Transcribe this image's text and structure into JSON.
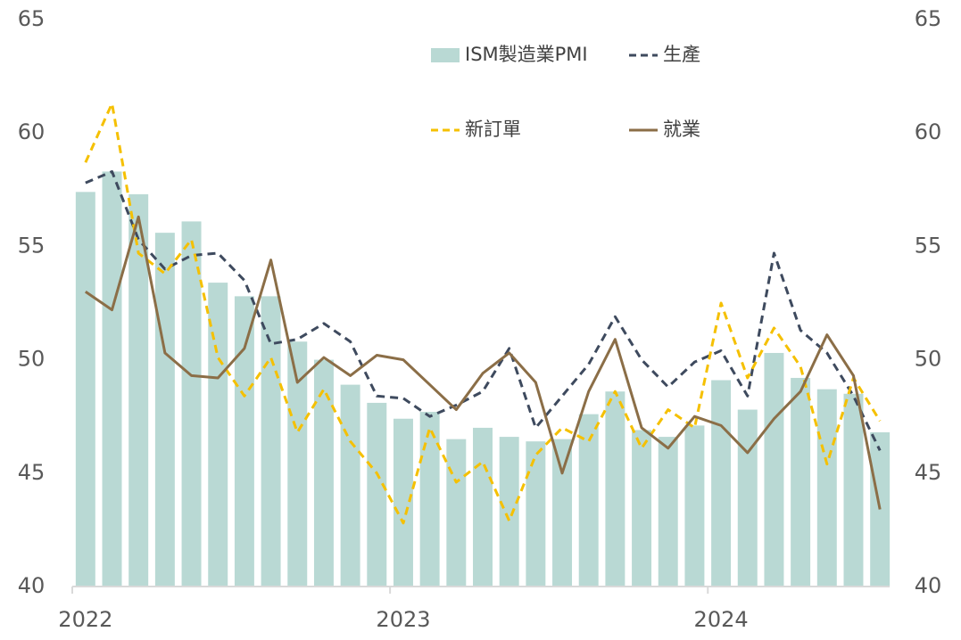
{
  "chart_data": {
    "type": "bar_line",
    "categories": [
      "2022",
      null,
      null,
      null,
      null,
      null,
      null,
      null,
      null,
      null,
      null,
      null,
      "2023",
      null,
      null,
      null,
      null,
      null,
      null,
      null,
      null,
      null,
      null,
      null,
      "2024",
      null,
      null,
      null,
      null,
      null,
      null
    ],
    "series": [
      {
        "name": "ISM製造業PMI",
        "type": "bar",
        "color": "#b9d9d4",
        "values": [
          57.4,
          58.3,
          57.3,
          55.6,
          56.1,
          53.4,
          52.8,
          52.8,
          50.8,
          50.0,
          48.9,
          48.1,
          47.4,
          47.7,
          46.5,
          47.0,
          46.6,
          46.4,
          46.5,
          47.6,
          48.6,
          46.9,
          46.6,
          47.1,
          49.1,
          47.8,
          50.3,
          49.2,
          48.7,
          48.5,
          46.8
        ]
      },
      {
        "name": "生產",
        "type": "line",
        "dash": true,
        "color": "#3e4a5e",
        "values": [
          57.8,
          58.3,
          55.3,
          54.0,
          54.6,
          54.7,
          53.5,
          50.7,
          50.9,
          51.6,
          50.8,
          48.4,
          48.3,
          47.5,
          48.0,
          48.6,
          50.5,
          47.0,
          48.4,
          49.8,
          51.9,
          50.0,
          48.8,
          49.9,
          50.4,
          48.4,
          54.7,
          51.3,
          50.3,
          48.4,
          46.0
        ]
      },
      {
        "name": "新訂單",
        "type": "line",
        "dash": true,
        "color": "#f5c000",
        "values": [
          58.7,
          61.3,
          54.7,
          53.8,
          55.3,
          50.1,
          48.4,
          50.1,
          46.8,
          48.7,
          46.4,
          45.0,
          42.8,
          47.0,
          44.6,
          45.5,
          42.9,
          45.8,
          47.0,
          46.4,
          48.6,
          46.1,
          47.8,
          47.0,
          52.5,
          49.2,
          51.4,
          49.7,
          45.4,
          49.2,
          47.3
        ]
      },
      {
        "name": "就業",
        "type": "line",
        "dash": false,
        "color": "#8b6e47",
        "values": [
          53.0,
          52.2,
          56.3,
          50.3,
          49.3,
          49.2,
          50.5,
          54.4,
          49.0,
          50.1,
          49.3,
          50.2,
          50.0,
          48.9,
          47.8,
          49.4,
          50.3,
          49.0,
          45.0,
          48.6,
          50.9,
          47.0,
          46.1,
          47.5,
          47.1,
          45.9,
          47.4,
          48.6,
          51.1,
          49.3,
          43.4
        ]
      }
    ],
    "ylim": [
      40,
      65
    ],
    "yticks": [
      40,
      45,
      50,
      55,
      60,
      65
    ],
    "y2lim": [
      40,
      65
    ],
    "y2ticks": [
      40,
      45,
      50,
      55,
      60,
      65
    ]
  }
}
